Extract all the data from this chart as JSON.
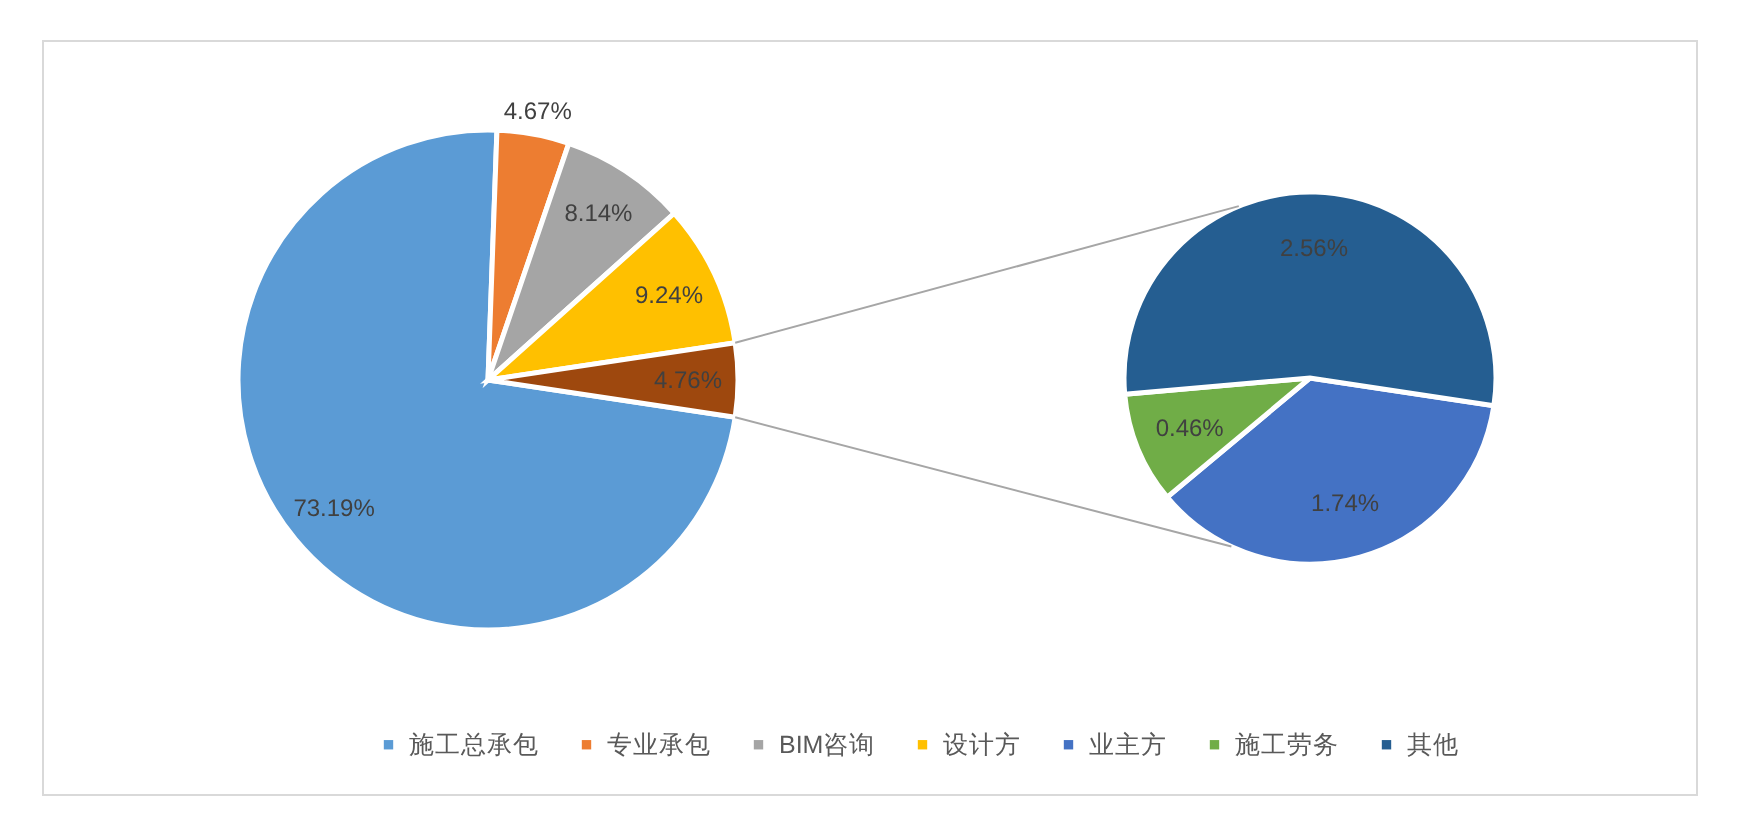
{
  "chart_data": [
    {
      "type": "pie",
      "categories": [
        "施工总承包",
        "专业承包",
        "BIM咨询",
        "设计方",
        null
      ],
      "values": [
        73.19,
        4.67,
        8.14,
        9.24,
        4.76
      ],
      "colors": [
        "#5b9bd5",
        "#ed7d31",
        "#a5a5a5",
        "#ffc000",
        "#9e480e"
      ],
      "value_labels": [
        "73.19%",
        "4.67%",
        "8.14%",
        "9.24%",
        "4.76%"
      ],
      "legend": "bottom"
    },
    {
      "type": "pie",
      "categories": [
        "业主方",
        "施工劳务",
        "其他"
      ],
      "values": [
        1.74,
        0.46,
        2.56
      ],
      "colors": [
        "#4472c4",
        "#70ad47",
        "#255e91"
      ],
      "value_labels": [
        "1.74%",
        "0.46%",
        "2.56%"
      ],
      "legend": "bottom"
    }
  ]
}
